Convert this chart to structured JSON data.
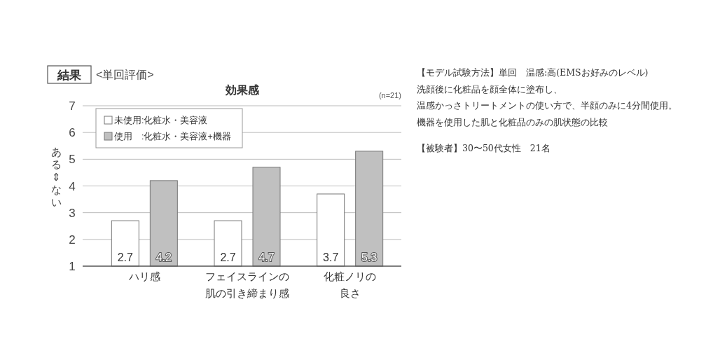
{
  "chart_data": {
    "type": "bar",
    "title": "効果感",
    "ylabel": "ある⇕ない",
    "annotations": [
      "結果",
      "<単回評価>",
      "(n=21)",
      "【モデル試験方法】単回　温感:高(EMSお好みのレベル)",
      "洗顔後に化粧品を顔全体に塗布し、",
      "温感かっさトリートメントの使い方で、半顔のみに4分間使用。",
      "機器を使用した肌と化粧品のみの肌状態の比較",
      "【被験者】30〜50代女性　21名"
    ],
    "categories": [
      "ハリ感",
      "フェイスラインの肌の引き締まり感",
      "化粧ノリの良さ"
    ],
    "series": [
      {
        "name": "未使用:化粧水・美容液",
        "color": "#ffffff",
        "values": [
          2.7,
          2.7,
          3.7
        ]
      },
      {
        "name": "使用　:化粧水・美容液+機器",
        "color": "#c0c0c0",
        "values": [
          4.2,
          4.7,
          5.3
        ]
      }
    ],
    "ylim": [
      1,
      7
    ],
    "yticks": [
      1,
      2,
      3,
      4,
      5,
      6,
      7
    ],
    "grid": "y",
    "legend": "top left",
    "data_labels": true
  }
}
